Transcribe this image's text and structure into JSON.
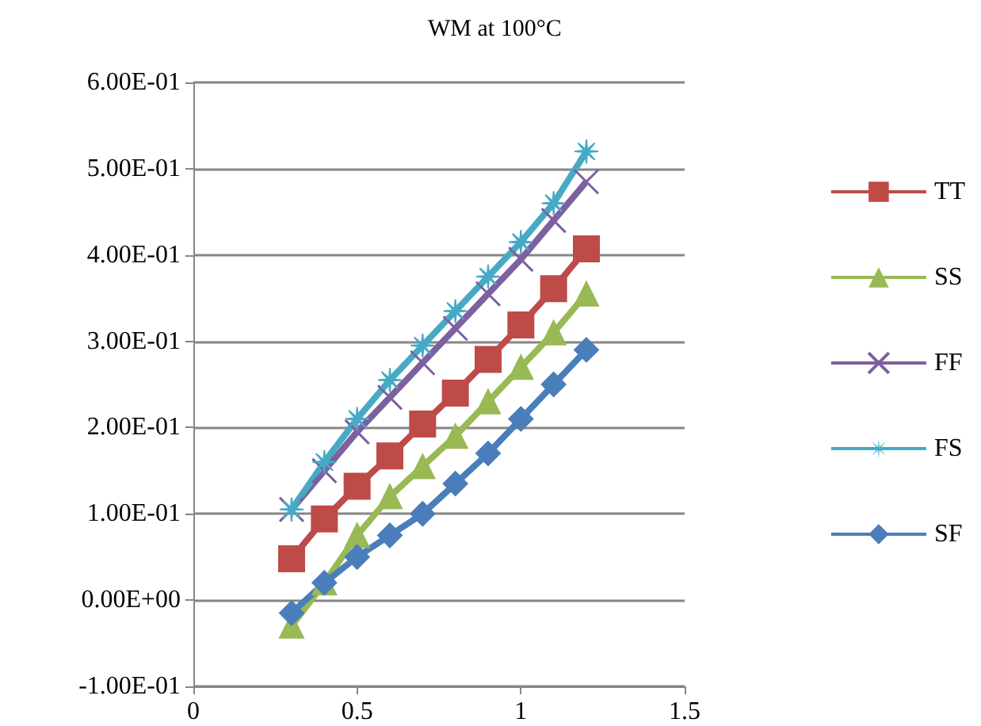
{
  "chart_data": {
    "type": "line",
    "title": "WM at 100°C",
    "x": [
      0.3,
      0.4,
      0.5,
      0.6,
      0.7,
      0.8,
      0.9,
      1.0,
      1.1,
      1.2
    ],
    "series": [
      {
        "name": "TT",
        "color": "#be4b48",
        "marker": "square",
        "values": [
          0.048,
          0.094,
          0.132,
          0.167,
          0.204,
          0.24,
          0.279,
          0.319,
          0.361,
          0.407
        ]
      },
      {
        "name": "SS",
        "color": "#98b954",
        "marker": "triangle",
        "values": [
          -0.03,
          0.02,
          0.075,
          0.12,
          0.155,
          0.19,
          0.23,
          0.27,
          0.31,
          0.355
        ]
      },
      {
        "name": "FF",
        "color": "#7d60a0",
        "marker": "cross",
        "values": [
          0.105,
          0.15,
          0.195,
          0.235,
          0.275,
          0.315,
          0.355,
          0.395,
          0.44,
          0.485
        ]
      },
      {
        "name": "FS",
        "color": "#46aac5",
        "marker": "star",
        "values": [
          0.105,
          0.16,
          0.21,
          0.255,
          0.295,
          0.335,
          0.375,
          0.415,
          0.46,
          0.52
        ]
      },
      {
        "name": "SF",
        "color": "#4a7ebb",
        "marker": "diamond",
        "values": [
          -0.015,
          0.02,
          0.05,
          0.075,
          0.1,
          0.135,
          0.17,
          0.21,
          0.25,
          0.29
        ]
      }
    ],
    "xlim": [
      0,
      1.5
    ],
    "xticks": [
      0,
      0.5,
      1,
      1.5
    ],
    "ylim": [
      -0.1,
      0.6
    ],
    "yticks": [
      {
        "value": -0.1,
        "label": "-1.00E-01"
      },
      {
        "value": 0,
        "label": "0.00E+00"
      },
      {
        "value": 0.1,
        "label": "1.00E-01"
      },
      {
        "value": 0.2,
        "label": "2.00E-01"
      },
      {
        "value": 0.3,
        "label": "3.00E-01"
      },
      {
        "value": 0.4,
        "label": "4.00E-01"
      },
      {
        "value": 0.5,
        "label": "5.00E-01"
      },
      {
        "value": 0.6,
        "label": "6.00E-01"
      }
    ],
    "grid": "y",
    "legend": "right"
  }
}
